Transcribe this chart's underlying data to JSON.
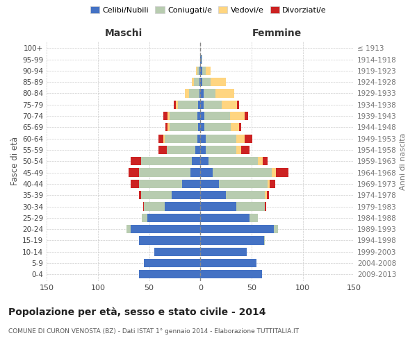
{
  "age_groups": [
    "0-4",
    "5-9",
    "10-14",
    "15-19",
    "20-24",
    "25-29",
    "30-34",
    "35-39",
    "40-44",
    "45-49",
    "50-54",
    "55-59",
    "60-64",
    "65-69",
    "70-74",
    "75-79",
    "80-84",
    "85-89",
    "90-94",
    "95-99",
    "100+"
  ],
  "birth_years": [
    "2009-2013",
    "2004-2008",
    "1999-2003",
    "1994-1998",
    "1989-1993",
    "1984-1988",
    "1979-1983",
    "1974-1978",
    "1969-1973",
    "1964-1968",
    "1959-1963",
    "1954-1958",
    "1949-1953",
    "1944-1948",
    "1939-1943",
    "1934-1938",
    "1929-1933",
    "1924-1928",
    "1919-1923",
    "1914-1918",
    "≤ 1913"
  ],
  "males": {
    "celibe": [
      60,
      55,
      45,
      60,
      68,
      52,
      35,
      28,
      18,
      10,
      8,
      5,
      3,
      2,
      3,
      2,
      1,
      1,
      1,
      0,
      0
    ],
    "coniugato": [
      0,
      0,
      0,
      0,
      4,
      5,
      20,
      30,
      42,
      50,
      50,
      28,
      32,
      28,
      27,
      20,
      10,
      5,
      2,
      0,
      0
    ],
    "vedovo": [
      0,
      0,
      0,
      0,
      0,
      0,
      0,
      0,
      0,
      0,
      0,
      0,
      1,
      2,
      2,
      2,
      4,
      2,
      1,
      0,
      0
    ],
    "divorziato": [
      0,
      0,
      0,
      0,
      0,
      0,
      1,
      2,
      8,
      10,
      10,
      8,
      5,
      2,
      4,
      2,
      0,
      0,
      0,
      0,
      0
    ]
  },
  "females": {
    "nubile": [
      60,
      55,
      45,
      62,
      72,
      48,
      35,
      25,
      18,
      12,
      8,
      5,
      5,
      4,
      4,
      3,
      3,
      2,
      2,
      1,
      0
    ],
    "coniugata": [
      0,
      0,
      0,
      1,
      4,
      8,
      28,
      38,
      48,
      58,
      48,
      30,
      30,
      26,
      25,
      18,
      12,
      8,
      3,
      1,
      0
    ],
    "vedova": [
      0,
      0,
      0,
      0,
      0,
      0,
      0,
      2,
      2,
      4,
      5,
      5,
      8,
      8,
      14,
      15,
      18,
      15,
      5,
      0,
      0
    ],
    "divorziata": [
      0,
      0,
      0,
      0,
      0,
      0,
      1,
      2,
      5,
      12,
      5,
      8,
      8,
      2,
      4,
      2,
      0,
      0,
      0,
      0,
      0
    ]
  },
  "colors": {
    "celibe": "#4472C4",
    "coniugato": "#B8CCB0",
    "vedovo": "#FFD580",
    "divorziato": "#CC2222"
  },
  "xlim": 150,
  "title": "Popolazione per età, sesso e stato civile - 2014",
  "subtitle": "COMUNE DI CURON VENOSTA (BZ) - Dati ISTAT 1° gennaio 2014 - Elaborazione TUTTITALIA.IT",
  "ylabel": "Fasce di età",
  "ylabel_right": "Anni di nascita",
  "legend_labels": [
    "Celibi/Nubili",
    "Coniugati/e",
    "Vedovi/e",
    "Divorziati/e"
  ]
}
